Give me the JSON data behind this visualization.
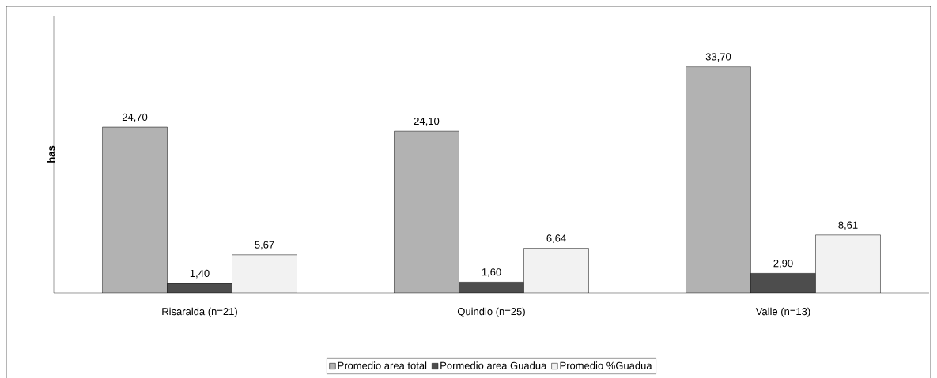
{
  "chart_data": {
    "type": "bar",
    "ylabel": "has",
    "categories": [
      "Risaralda (n=21)",
      "Quindio (n=25)",
      "Valle (n=13)"
    ],
    "series": [
      {
        "name": "Promedio area total",
        "color": "#b2b2b2",
        "values": [
          24.7,
          24.1,
          33.7
        ],
        "value_labels": [
          "24,70",
          "24,10",
          "33,70"
        ]
      },
      {
        "name": "Pormedio area Guadua",
        "color": "#4d4d4d",
        "values": [
          1.4,
          1.6,
          2.9
        ],
        "value_labels": [
          "1,40",
          "1,60",
          "2,90"
        ]
      },
      {
        "name": "Promedio %Guadua",
        "color": "#f2f2f2",
        "values": [
          5.67,
          6.64,
          8.61
        ],
        "value_labels": [
          "5,67",
          "6,64",
          "8,61"
        ]
      }
    ],
    "ylim": [
      0,
      41.3
    ],
    "tick_labels": "x",
    "grid": false,
    "legend": "bottom"
  }
}
